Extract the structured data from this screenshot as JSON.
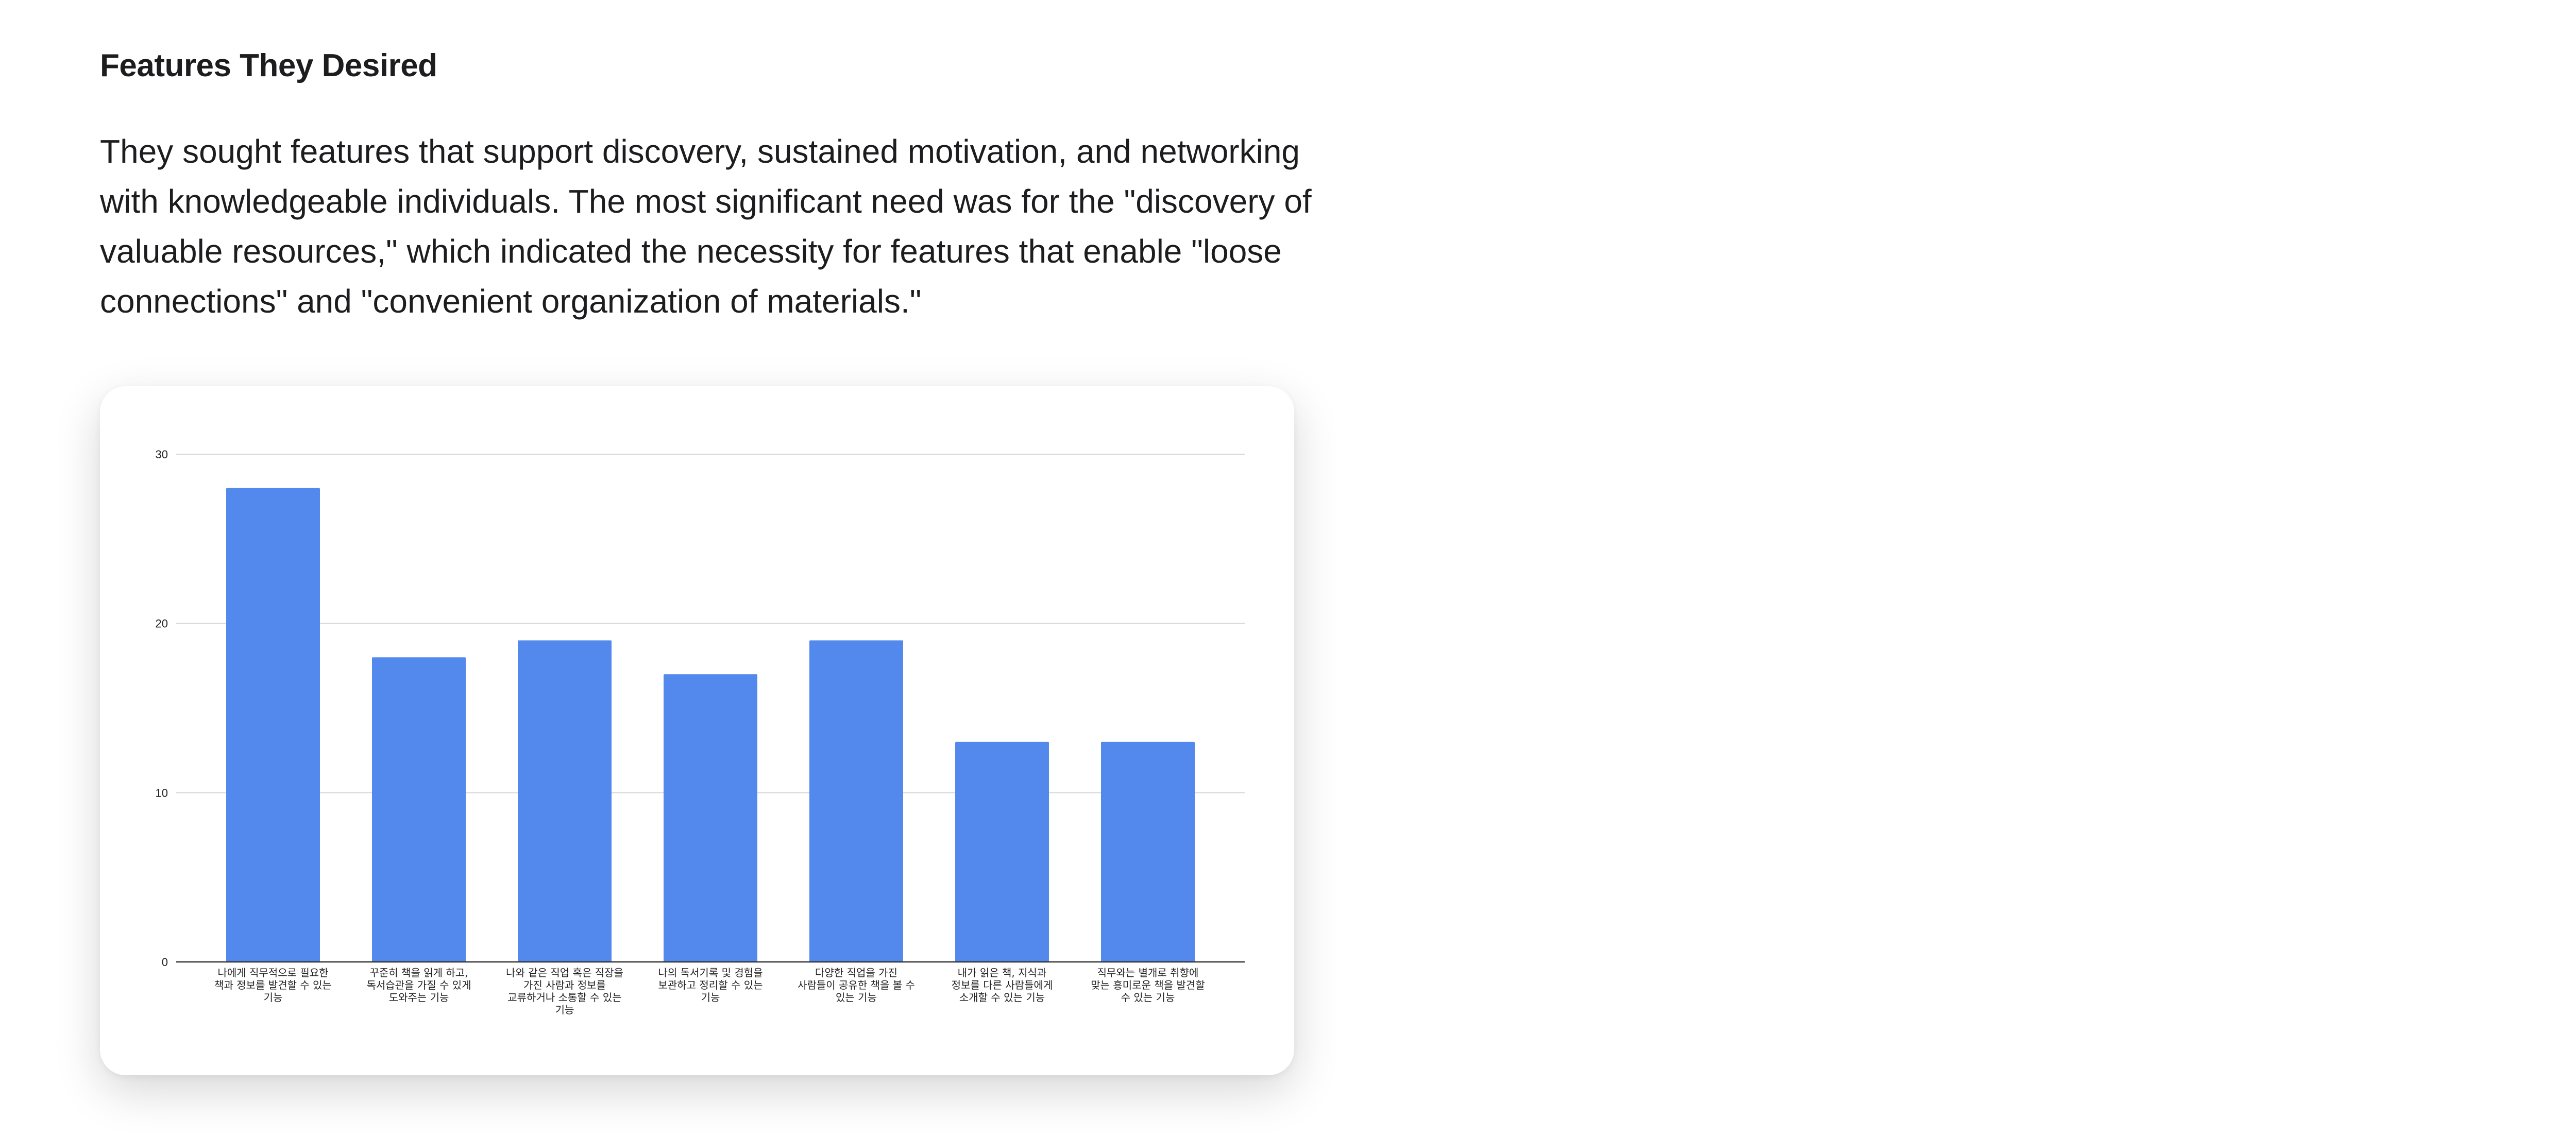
{
  "section": {
    "title": "Features They Desired",
    "body": "They sought features that support discovery, sustained motivation, and networking with knowledgeable individuals. The most significant need was for the \"discovery of valuable resources,\" which indicated the necessity for features that enable \"loose connections\" and \"convenient organization of materials.\""
  },
  "chart_data": {
    "type": "bar",
    "categories": [
      [
        "나에게 직무적으로 필요한",
        "책과 정보를 발견할 수 있는",
        "기능"
      ],
      [
        "꾸준히 책을 읽게 하고,",
        "독서습관을 가질 수 있게",
        "도와주는 기능"
      ],
      [
        "나와 같은 직업 혹은 직장을",
        "가진 사람과 정보를",
        "교류하거나 소통할 수 있는",
        "기능"
      ],
      [
        "나의 독서기록 및 경험을",
        "보관하고 정리할 수 있는",
        "기능"
      ],
      [
        "다양한 직업을 가진",
        "사람들이 공유한 책을 볼 수",
        "있는 기능"
      ],
      [
        "내가 읽은 책, 지식과",
        "정보를 다른 사람들에게",
        "소개할 수 있는 기능"
      ],
      [
        "직무와는 별개로 취향에",
        "맞는 흥미로운 책을 발견할",
        "수 있는 기능"
      ]
    ],
    "values": [
      28,
      18,
      19,
      17,
      19,
      13,
      13
    ],
    "ylim": [
      0,
      30
    ],
    "yticks": [
      0,
      10,
      20,
      30
    ],
    "grid": true,
    "bar_color": "#5388ed",
    "title": "",
    "xlabel": "",
    "ylabel": ""
  }
}
